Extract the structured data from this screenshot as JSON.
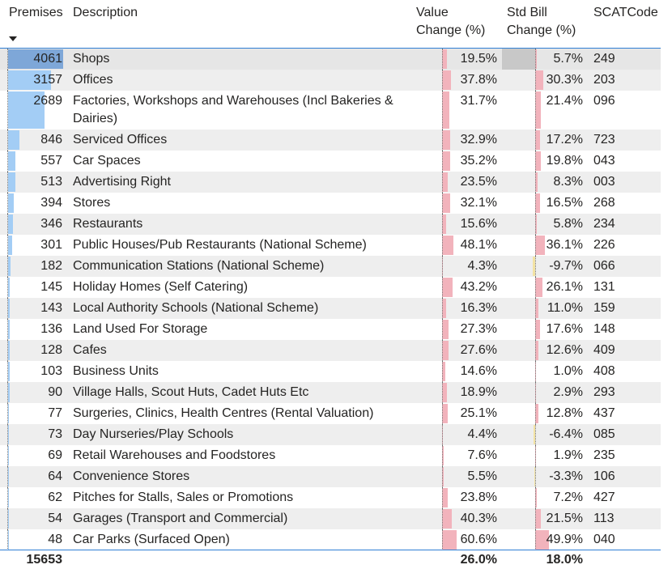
{
  "header": {
    "columns": [
      "Premises",
      "Description",
      "Value Change (%)",
      "Std Bill Change (%)",
      "SCATCode"
    ]
  },
  "table": {
    "rows": [
      {
        "premises": 4061,
        "description": "Shops",
        "value_change": 19.5,
        "value_change_label": "19.5%",
        "std_bill_change": 5.7,
        "std_bill_change_label": "5.7%",
        "scat_code": "249"
      },
      {
        "premises": 3157,
        "description": "Offices",
        "value_change": 37.8,
        "value_change_label": "37.8%",
        "std_bill_change": 30.3,
        "std_bill_change_label": "30.3%",
        "scat_code": "203"
      },
      {
        "premises": 2689,
        "description": "Factories, Workshops and Warehouses (Incl Bakeries & Dairies)",
        "value_change": 31.7,
        "value_change_label": "31.7%",
        "std_bill_change": 21.4,
        "std_bill_change_label": "21.4%",
        "scat_code": "096"
      },
      {
        "premises": 846,
        "description": "Serviced Offices",
        "value_change": 32.9,
        "value_change_label": "32.9%",
        "std_bill_change": 17.2,
        "std_bill_change_label": "17.2%",
        "scat_code": "723"
      },
      {
        "premises": 557,
        "description": "Car Spaces",
        "value_change": 35.2,
        "value_change_label": "35.2%",
        "std_bill_change": 19.8,
        "std_bill_change_label": "19.8%",
        "scat_code": "043"
      },
      {
        "premises": 513,
        "description": "Advertising Right",
        "value_change": 23.5,
        "value_change_label": "23.5%",
        "std_bill_change": 8.3,
        "std_bill_change_label": "8.3%",
        "scat_code": "003"
      },
      {
        "premises": 394,
        "description": "Stores",
        "value_change": 32.1,
        "value_change_label": "32.1%",
        "std_bill_change": 16.5,
        "std_bill_change_label": "16.5%",
        "scat_code": "268"
      },
      {
        "premises": 346,
        "description": "Restaurants",
        "value_change": 15.6,
        "value_change_label": "15.6%",
        "std_bill_change": 5.8,
        "std_bill_change_label": "5.8%",
        "scat_code": "234"
      },
      {
        "premises": 301,
        "description": "Public Houses/Pub Restaurants (National Scheme)",
        "value_change": 48.1,
        "value_change_label": "48.1%",
        "std_bill_change": 36.1,
        "std_bill_change_label": "36.1%",
        "scat_code": "226"
      },
      {
        "premises": 182,
        "description": "Communication Stations (National Scheme)",
        "value_change": 4.3,
        "value_change_label": "4.3%",
        "std_bill_change": -9.7,
        "std_bill_change_label": "-9.7%",
        "scat_code": "066"
      },
      {
        "premises": 145,
        "description": "Holiday Homes (Self Catering)",
        "value_change": 43.2,
        "value_change_label": "43.2%",
        "std_bill_change": 26.1,
        "std_bill_change_label": "26.1%",
        "scat_code": "131"
      },
      {
        "premises": 143,
        "description": "Local Authority Schools (National Scheme)",
        "value_change": 16.3,
        "value_change_label": "16.3%",
        "std_bill_change": 11.0,
        "std_bill_change_label": "11.0%",
        "scat_code": "159"
      },
      {
        "premises": 136,
        "description": "Land Used For Storage",
        "value_change": 27.3,
        "value_change_label": "27.3%",
        "std_bill_change": 17.6,
        "std_bill_change_label": "17.6%",
        "scat_code": "148"
      },
      {
        "premises": 128,
        "description": "Cafes",
        "value_change": 27.6,
        "value_change_label": "27.6%",
        "std_bill_change": 12.6,
        "std_bill_change_label": "12.6%",
        "scat_code": "409"
      },
      {
        "premises": 103,
        "description": "Business Units",
        "value_change": 14.6,
        "value_change_label": "14.6%",
        "std_bill_change": 1.0,
        "std_bill_change_label": "1.0%",
        "scat_code": "408"
      },
      {
        "premises": 90,
        "description": "Village Halls, Scout Huts, Cadet Huts Etc",
        "value_change": 18.9,
        "value_change_label": "18.9%",
        "std_bill_change": 2.9,
        "std_bill_change_label": "2.9%",
        "scat_code": "293"
      },
      {
        "premises": 77,
        "description": "Surgeries, Clinics, Health Centres (Rental Valuation)",
        "value_change": 25.1,
        "value_change_label": "25.1%",
        "std_bill_change": 12.8,
        "std_bill_change_label": "12.8%",
        "scat_code": "437"
      },
      {
        "premises": 73,
        "description": "Day Nurseries/Play Schools",
        "value_change": 4.4,
        "value_change_label": "4.4%",
        "std_bill_change": -6.4,
        "std_bill_change_label": "-6.4%",
        "scat_code": "085"
      },
      {
        "premises": 69,
        "description": "Retail Warehouses and Foodstores",
        "value_change": 7.6,
        "value_change_label": "7.6%",
        "std_bill_change": 1.9,
        "std_bill_change_label": "1.9%",
        "scat_code": "235"
      },
      {
        "premises": 64,
        "description": "Convenience Stores",
        "value_change": 5.5,
        "value_change_label": "5.5%",
        "std_bill_change": -3.3,
        "std_bill_change_label": "-3.3%",
        "scat_code": "106"
      },
      {
        "premises": 62,
        "description": "Pitches for Stalls, Sales or Promotions",
        "value_change": 23.8,
        "value_change_label": "23.8%",
        "std_bill_change": 7.2,
        "std_bill_change_label": "7.2%",
        "scat_code": "427"
      },
      {
        "premises": 54,
        "description": "Garages (Transport and Commercial)",
        "value_change": 40.3,
        "value_change_label": "40.3%",
        "std_bill_change": 21.5,
        "std_bill_change_label": "21.5%",
        "scat_code": "113"
      },
      {
        "premises": 48,
        "description": "Car Parks (Surfaced Open)",
        "value_change": 60.6,
        "value_change_label": "60.6%",
        "std_bill_change": 49.9,
        "std_bill_change_label": "49.9%",
        "scat_code": "040"
      }
    ],
    "total": {
      "premises": 15653,
      "value_change": "26.0%",
      "std_bill_change": "18.0%"
    }
  }
}
